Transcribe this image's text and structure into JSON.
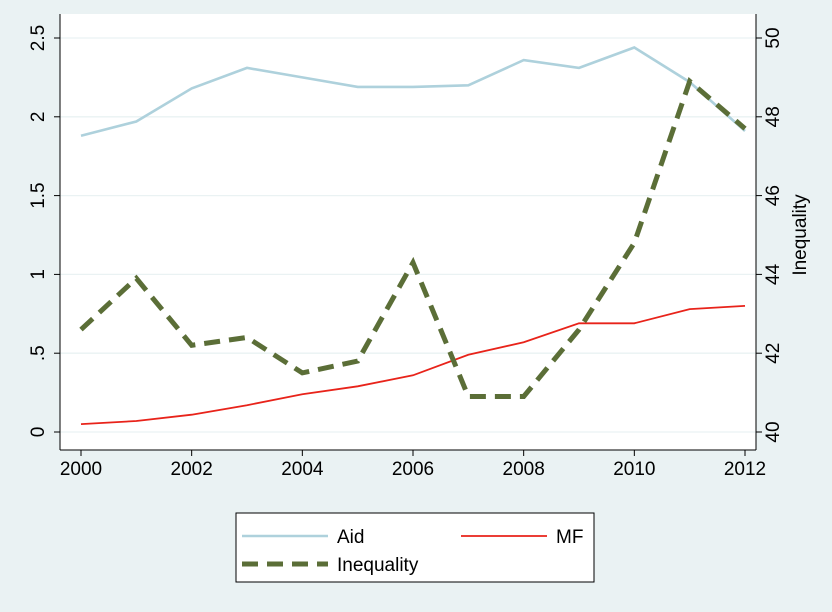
{
  "chart_data": {
    "type": "line",
    "title": "",
    "xlabel": "",
    "ylabel_left": "",
    "ylabel_right": "Inequality",
    "x": [
      2000,
      2001,
      2002,
      2003,
      2004,
      2005,
      2006,
      2007,
      2008,
      2009,
      2010,
      2011,
      2012
    ],
    "x_ticks": [
      2000,
      2002,
      2004,
      2006,
      2008,
      2010,
      2012
    ],
    "x_tick_labels": [
      "2000",
      "2002",
      "2004",
      "2006",
      "2008",
      "2010",
      "2012"
    ],
    "xlim": [
      2000,
      2012
    ],
    "y_left_ticks": [
      0,
      0.5,
      1,
      1.5,
      2,
      2.5
    ],
    "y_left_tick_labels": [
      "0",
      ".5",
      "1",
      "1.5",
      "2",
      "2.5"
    ],
    "ylim_left": [
      0,
      2.5
    ],
    "y_right_ticks": [
      40,
      42,
      44,
      46,
      48,
      50
    ],
    "y_right_tick_labels": [
      "40",
      "42",
      "44",
      "46",
      "48",
      "50"
    ],
    "ylim_right": [
      40,
      50
    ],
    "grid": true,
    "legend_position": "bottom",
    "series": [
      {
        "name": "Aid",
        "axis": "left",
        "style": "solid",
        "color": "#aed1dc",
        "values": [
          1.88,
          1.97,
          2.18,
          2.31,
          2.25,
          2.19,
          2.19,
          2.2,
          2.36,
          2.31,
          2.44,
          2.22,
          1.91
        ]
      },
      {
        "name": "MF",
        "axis": "left",
        "style": "solid",
        "color": "#e8231a",
        "values": [
          0.05,
          0.07,
          0.11,
          0.17,
          0.24,
          0.29,
          0.36,
          0.49,
          0.57,
          0.69,
          0.69,
          0.78,
          0.8
        ]
      },
      {
        "name": "Inequality",
        "axis": "right",
        "style": "dashed",
        "color": "#5b6e37",
        "values": [
          42.6,
          43.9,
          42.2,
          42.4,
          41.5,
          41.8,
          44.3,
          40.9,
          40.9,
          42.6,
          44.8,
          48.9,
          47.7
        ]
      }
    ]
  }
}
